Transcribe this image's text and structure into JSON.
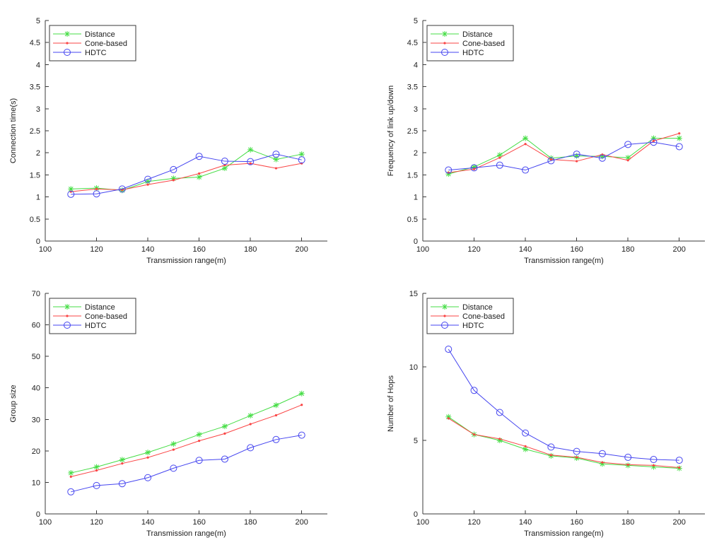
{
  "figure": {
    "background": "#ffffff",
    "axis_color": "#3a3a3a",
    "text_color": "#1c1c1c"
  },
  "chart_data": [
    {
      "type": "line",
      "title": "",
      "xlabel": "Transmission range(m)",
      "ylabel": "Connection time(s)",
      "xlim": [
        100,
        210
      ],
      "ylim": [
        0,
        5
      ],
      "xticks": [
        100,
        120,
        140,
        160,
        180,
        200
      ],
      "yticks": [
        0,
        0.5,
        1,
        1.5,
        2,
        2.5,
        3,
        3.5,
        4,
        4.5,
        5
      ],
      "grid": false,
      "legend_position": "top-left",
      "x": [
        110,
        120,
        130,
        140,
        150,
        160,
        170,
        180,
        190,
        200
      ],
      "series": [
        {
          "name": "Distance",
          "color": "#44dd44",
          "marker": "star",
          "values": [
            1.18,
            1.2,
            1.15,
            1.35,
            1.42,
            1.45,
            1.65,
            2.07,
            1.85,
            1.97
          ]
        },
        {
          "name": "Cone-based",
          "color": "#fa4545",
          "marker": "dot",
          "values": [
            1.12,
            1.18,
            1.16,
            1.28,
            1.38,
            1.53,
            1.72,
            1.76,
            1.65,
            1.76
          ]
        },
        {
          "name": "HDTC",
          "color": "#4646f0",
          "marker": "circle",
          "values": [
            1.06,
            1.07,
            1.18,
            1.4,
            1.62,
            1.92,
            1.81,
            1.8,
            1.97,
            1.84
          ]
        }
      ]
    },
    {
      "type": "line",
      "title": "",
      "xlabel": "Transmission range(m)",
      "ylabel": "Frequency of link up/down",
      "xlim": [
        100,
        210
      ],
      "ylim": [
        0,
        5
      ],
      "xticks": [
        100,
        120,
        140,
        160,
        180,
        200
      ],
      "yticks": [
        0,
        0.5,
        1,
        1.5,
        2,
        2.5,
        3,
        3.5,
        4,
        4.5,
        5
      ],
      "grid": false,
      "legend_position": "top-left",
      "x": [
        110,
        120,
        130,
        140,
        150,
        160,
        170,
        180,
        190,
        200
      ],
      "series": [
        {
          "name": "Distance",
          "color": "#44dd44",
          "marker": "star",
          "values": [
            1.52,
            1.68,
            1.95,
            2.33,
            1.88,
            1.93,
            1.92,
            1.89,
            2.33,
            2.33
          ]
        },
        {
          "name": "Cone-based",
          "color": "#fa4545",
          "marker": "dot",
          "values": [
            1.55,
            1.63,
            1.89,
            2.2,
            1.85,
            1.81,
            1.96,
            1.83,
            2.27,
            2.44
          ]
        },
        {
          "name": "HDTC",
          "color": "#4646f0",
          "marker": "circle",
          "values": [
            1.61,
            1.66,
            1.72,
            1.61,
            1.82,
            1.97,
            1.88,
            2.19,
            2.24,
            2.14
          ]
        }
      ]
    },
    {
      "type": "line",
      "title": "",
      "xlabel": "Transmission range(m)",
      "ylabel": "Group size",
      "xlim": [
        100,
        210
      ],
      "ylim": [
        0,
        70
      ],
      "xticks": [
        100,
        120,
        140,
        160,
        180,
        200
      ],
      "yticks": [
        0,
        10,
        20,
        30,
        40,
        50,
        60,
        70
      ],
      "grid": false,
      "legend_position": "top-left",
      "x": [
        110,
        120,
        130,
        140,
        150,
        160,
        170,
        180,
        190,
        200
      ],
      "series": [
        {
          "name": "Distance",
          "color": "#44dd44",
          "marker": "star",
          "values": [
            13.0,
            14.9,
            17.2,
            19.5,
            22.2,
            25.2,
            27.8,
            31.2,
            34.5,
            38.2
          ]
        },
        {
          "name": "Cone-based",
          "color": "#fa4545",
          "marker": "dot",
          "values": [
            11.8,
            13.8,
            16.0,
            17.9,
            20.4,
            23.2,
            25.5,
            28.5,
            31.3,
            34.6
          ]
        },
        {
          "name": "HDTC",
          "color": "#4646f0",
          "marker": "circle",
          "values": [
            7.0,
            9.0,
            9.6,
            11.5,
            14.5,
            17.0,
            17.4,
            21.0,
            23.6,
            25.0
          ]
        }
      ]
    },
    {
      "type": "line",
      "title": "",
      "xlabel": "Transmission range(m)",
      "ylabel": "Number of Hops",
      "xlim": [
        100,
        210
      ],
      "ylim": [
        0,
        15
      ],
      "xticks": [
        100,
        120,
        140,
        160,
        180,
        200
      ],
      "yticks": [
        0,
        5,
        10,
        15
      ],
      "grid": false,
      "legend_position": "top-left",
      "x": [
        110,
        120,
        130,
        140,
        150,
        160,
        170,
        180,
        190,
        200
      ],
      "series": [
        {
          "name": "Distance",
          "color": "#44dd44",
          "marker": "star",
          "values": [
            6.6,
            5.4,
            5.0,
            4.4,
            3.95,
            3.8,
            3.4,
            3.3,
            3.2,
            3.1
          ]
        },
        {
          "name": "Cone-based",
          "color": "#fa4545",
          "marker": "dot",
          "values": [
            6.5,
            5.4,
            5.1,
            4.6,
            4.0,
            3.85,
            3.5,
            3.35,
            3.3,
            3.15
          ]
        },
        {
          "name": "HDTC",
          "color": "#4646f0",
          "marker": "circle",
          "values": [
            11.2,
            8.4,
            6.9,
            5.5,
            4.55,
            4.25,
            4.1,
            3.85,
            3.7,
            3.65
          ]
        }
      ]
    }
  ]
}
